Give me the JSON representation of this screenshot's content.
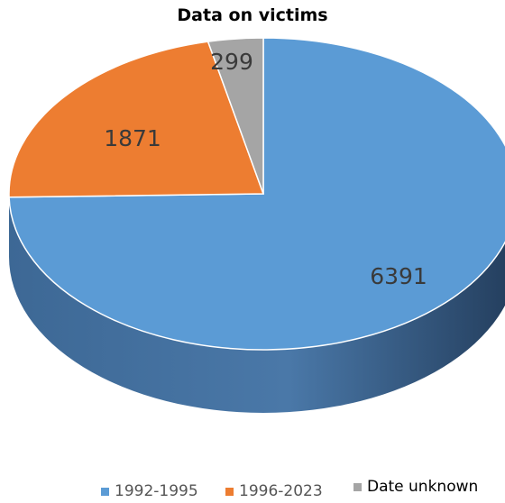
{
  "chart_data": {
    "type": "pie",
    "title": "Data on victims",
    "categories": [
      "1992-1995",
      "1996-2023",
      "Date unknown"
    ],
    "values": [
      6391,
      1871,
      299
    ],
    "colors": [
      "#5B9BD5",
      "#ED7D31",
      "#A5A5A5"
    ],
    "legend_position": "bottom",
    "style": "3d"
  }
}
